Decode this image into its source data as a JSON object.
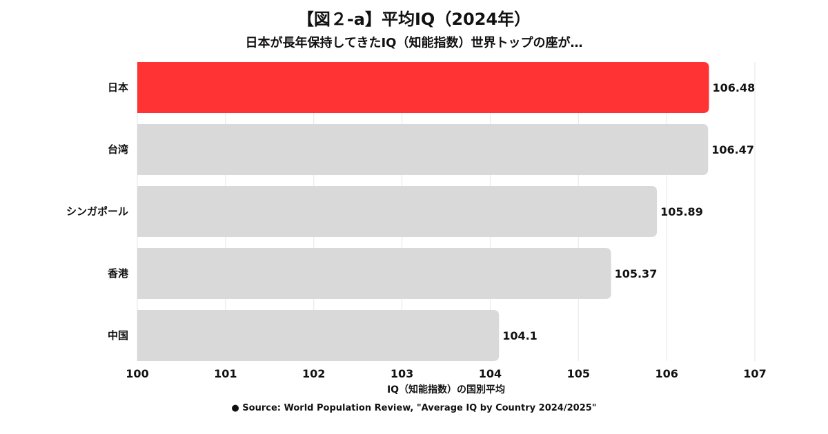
{
  "header": {
    "title": "【図２-a】平均IQ（2024年）",
    "subtitle": "日本が長年保持してきたIQ（知能指数）世界トップの座が…"
  },
  "footer": {
    "source": "● Source: World Population Review, \"Average IQ by Country 2024/2025\""
  },
  "chart_data": {
    "type": "bar",
    "orientation": "horizontal",
    "title": "【図２-a】平均IQ（2024年）",
    "subtitle": "日本が長年保持してきたIQ（知能指数）世界トップの座が…",
    "categories": [
      "日本",
      "台湾",
      "シンガポール",
      "香港",
      "中国"
    ],
    "values": [
      106.48,
      106.47,
      105.89,
      105.37,
      104.1
    ],
    "value_labels": [
      "106.48",
      "106.47",
      "105.89",
      "105.37",
      "104.1"
    ],
    "xlabel": "IQ（知能指数）の国別平均",
    "ylabel": "",
    "xlim": [
      100,
      107
    ],
    "xticks": [
      "100",
      "101",
      "102",
      "103",
      "104",
      "105",
      "106",
      "107"
    ],
    "grid": true,
    "colors": {
      "highlight": "#FF3333",
      "default": "#D9D9D9",
      "grid": "#E6E6E6"
    },
    "highlight_index": 0
  }
}
